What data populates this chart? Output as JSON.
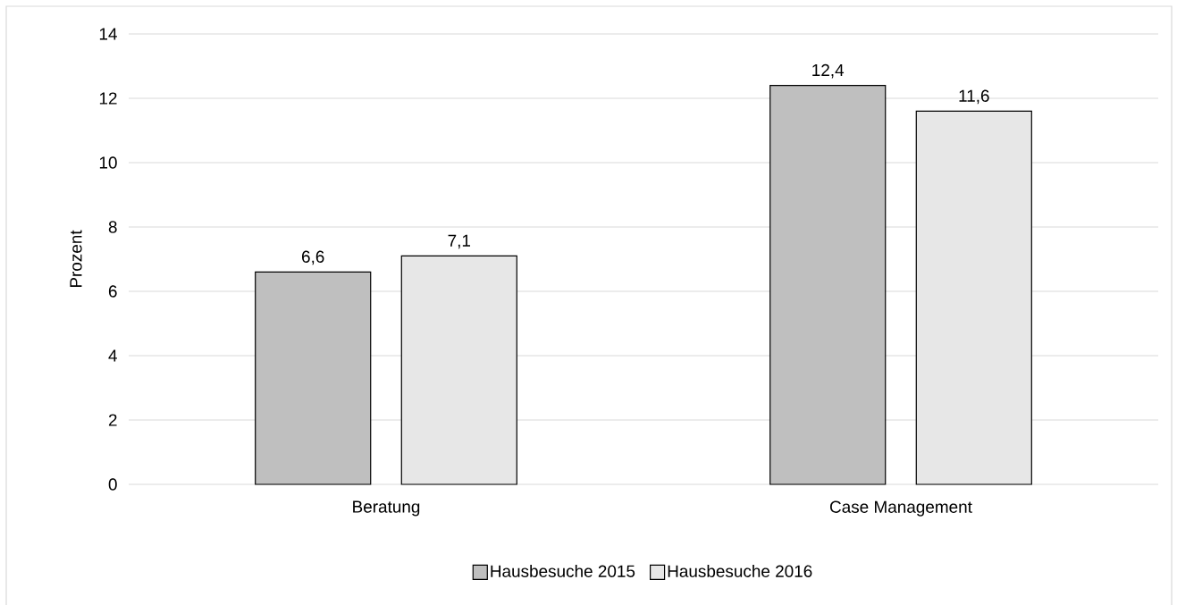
{
  "chart_data": {
    "type": "bar",
    "ylabel": "Prozent",
    "categories": [
      "Beratung",
      "Case Management"
    ],
    "series": [
      {
        "name": "Hausbesuche 2015",
        "color": "#bfbfbf",
        "values": [
          6.6,
          12.4
        ],
        "value_labels": [
          "6,6",
          "12,4"
        ]
      },
      {
        "name": "Hausbesuche 2016",
        "color": "#e7e7e7",
        "values": [
          7.1,
          11.6
        ],
        "value_labels": [
          "7,1",
          "11,6"
        ]
      }
    ],
    "ylim": [
      0,
      14
    ],
    "yticks": [
      0,
      2,
      4,
      6,
      8,
      10,
      12,
      14
    ],
    "grid": "y",
    "legend": "bottom"
  }
}
